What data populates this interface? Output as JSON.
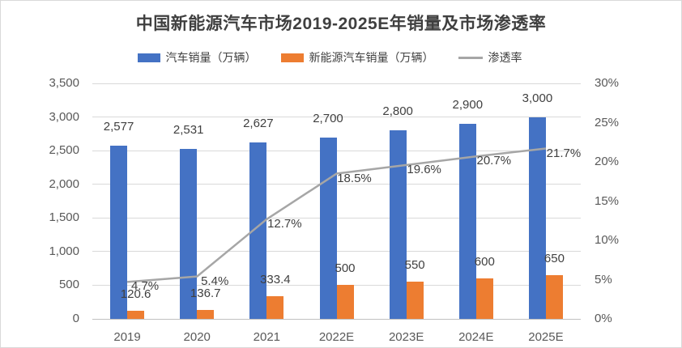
{
  "title": "中国新能源汽车市场2019-2025E年销量及市场渗透率",
  "legend": [
    {
      "label": "汽车销量（万辆）",
      "marker": "bar",
      "color": "#4472C4"
    },
    {
      "label": "新能源汽车销量（万辆）",
      "marker": "bar",
      "color": "#ED7D31"
    },
    {
      "label": "渗透率",
      "marker": "line",
      "color": "#A6A6A6"
    }
  ],
  "chart_data": {
    "type": "bar",
    "subtype": "grouped-bar-with-line-combo",
    "title": "中国新能源汽车市场2019-2025E年销量及市场渗透率",
    "categories": [
      "2019",
      "2020",
      "2021",
      "2022E",
      "2023E",
      "2024E",
      "2025E"
    ],
    "series": [
      {
        "name": "汽车销量（万辆）",
        "type": "bar",
        "axis": "left",
        "color": "#4472C4",
        "values": [
          2577,
          2531,
          2627,
          2700,
          2800,
          2900,
          3000
        ],
        "labels": [
          "2,577",
          "2,531",
          "2,627",
          "2,700",
          "2,800",
          "2,900",
          "3,000"
        ]
      },
      {
        "name": "新能源汽车销量（万辆）",
        "type": "bar",
        "axis": "left",
        "color": "#ED7D31",
        "values": [
          120.6,
          136.7,
          333.4,
          500,
          550,
          600,
          650
        ],
        "labels": [
          "120.6",
          "136.7",
          "333.4",
          "500",
          "550",
          "600",
          "650"
        ]
      },
      {
        "name": "渗透率",
        "type": "line",
        "axis": "right",
        "color": "#A6A6A6",
        "values": [
          4.7,
          5.4,
          12.7,
          18.5,
          19.6,
          20.7,
          21.7
        ],
        "labels": [
          "4.7%",
          "5.4%",
          "12.7%",
          "18.5%",
          "19.6%",
          "20.7%",
          "21.7%"
        ]
      }
    ],
    "left_axis": {
      "min": 0,
      "max": 3500,
      "step": 500,
      "ticks": [
        "0",
        "500",
        "1,000",
        "1,500",
        "2,000",
        "2,500",
        "3,000",
        "3,500"
      ]
    },
    "right_axis": {
      "min": 0,
      "max": 30,
      "step": 5,
      "ticks": [
        "0%",
        "5%",
        "10%",
        "15%",
        "20%",
        "25%",
        "30%"
      ]
    },
    "grid": true,
    "legend_position": "top"
  }
}
